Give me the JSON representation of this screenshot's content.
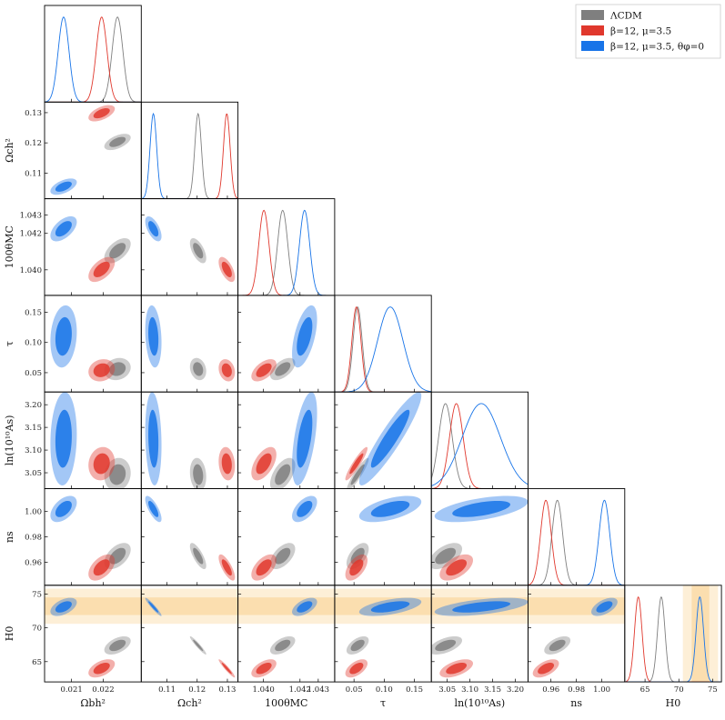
{
  "chart_data": {
    "type": "triangle-corner-plot",
    "parameters": [
      {
        "id": "omb",
        "label": "Ωbh²",
        "range": [
          0.02015,
          0.0232
        ],
        "ticks": [
          0.021,
          0.022
        ],
        "tick_labels": [
          "0.021",
          "0.022"
        ]
      },
      {
        "id": "omc",
        "label": "Ωch²",
        "range": [
          0.1015,
          0.1335
        ],
        "ticks": [
          0.11,
          0.12,
          0.13
        ],
        "tick_labels": [
          "0.11",
          "0.12",
          "0.13"
        ]
      },
      {
        "id": "theta",
        "label": "100θMC",
        "range": [
          1.0386,
          1.0439
        ],
        "ticks": [
          1.04,
          1.042,
          1.043
        ],
        "tick_labels": [
          "1.040",
          "1.042",
          "1.043"
        ]
      },
      {
        "id": "tau",
        "label": "τ",
        "range": [
          0.018,
          0.178
        ],
        "ticks": [
          0.05,
          0.1,
          0.15
        ],
        "tick_labels": [
          "0.05",
          "0.10",
          "0.15"
        ]
      },
      {
        "id": "las",
        "label": "ln(10¹⁰As)",
        "range": [
          3.015,
          3.228
        ],
        "ticks": [
          3.05,
          3.1,
          3.15,
          3.2
        ],
        "tick_labels": [
          "3.05",
          "3.10",
          "3.15",
          "3.20"
        ]
      },
      {
        "id": "ns",
        "label": "ns",
        "range": [
          0.942,
          1.018
        ],
        "ticks": [
          0.96,
          0.98,
          1.0
        ],
        "tick_labels": [
          "0.96",
          "0.98",
          "1.00"
        ]
      },
      {
        "id": "H0",
        "label": "H0",
        "range": [
          62.0,
          76.3
        ],
        "ticks": [
          65,
          70,
          75
        ],
        "tick_labels": [
          "65",
          "70",
          "75"
        ]
      }
    ],
    "series": [
      {
        "name": "ΛCDM",
        "color": "#7f7f7f",
        "mean": {
          "omb": 0.02245,
          "omc": 0.1203,
          "theta": 1.04105,
          "tau": 0.056,
          "las": 3.046,
          "ns": 0.965,
          "H0": 67.4
        },
        "sigma": {
          "omb": 0.00017,
          "omc": 0.0011,
          "theta": 0.00028,
          "tau": 0.0075,
          "las": 0.015,
          "ns": 0.0042,
          "H0": 0.55
        }
      },
      {
        "name": "β=12, μ=3.5",
        "color": "#e0382d",
        "mean": {
          "omb": 0.02195,
          "omc": 0.1298,
          "theta": 1.04002,
          "tau": 0.054,
          "las": 3.07,
          "ns": 0.956,
          "H0": 64.0
        },
        "sigma": {
          "omb": 0.00017,
          "omc": 0.0011,
          "theta": 0.00028,
          "tau": 0.0075,
          "las": 0.015,
          "ns": 0.0042,
          "H0": 0.55
        }
      },
      {
        "name": "β=12, μ=3.5, θφ=0",
        "color": "#1874e8",
        "mean": {
          "omb": 0.02075,
          "omc": 0.1055,
          "theta": 1.04225,
          "tau": 0.11,
          "las": 3.125,
          "ns": 1.002,
          "H0": 73.1
        },
        "sigma": {
          "omb": 0.00017,
          "omc": 0.0011,
          "theta": 0.00028,
          "tau": 0.021,
          "las": 0.042,
          "ns": 0.0042,
          "H0": 0.55
        }
      }
    ],
    "h0_band": {
      "mean": 73.2,
      "sigma": 1.3,
      "color": "#f5a623"
    }
  }
}
